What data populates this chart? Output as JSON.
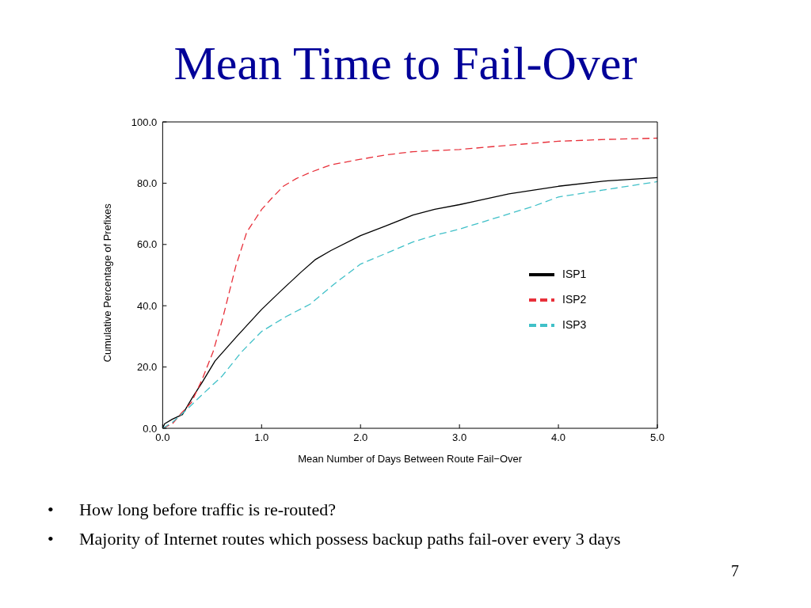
{
  "chart_data": {
    "type": "line",
    "title": "Mean Time to Fail-Over",
    "xlabel": "Mean Number of Days Between Route Fail−Over",
    "ylabel": "Cumulative Percentage of Prefixes",
    "xlim": [
      0,
      5
    ],
    "xticks": [
      {
        "value": 0,
        "label": "0.0"
      },
      {
        "value": 1,
        "label": "1.0"
      },
      {
        "value": 2,
        "label": "2.0"
      },
      {
        "value": 3,
        "label": "3.0"
      },
      {
        "value": 4,
        "label": "4.0"
      },
      {
        "value": 5,
        "label": "5.0"
      }
    ],
    "ylim": [
      0,
      100
    ],
    "yticks": [
      {
        "value": 0,
        "label": "0.0"
      },
      {
        "value": 20,
        "label": "20.0"
      },
      {
        "value": 40,
        "label": "40.0"
      },
      {
        "value": 60,
        "label": "60.0"
      },
      {
        "value": 80,
        "label": "80.0"
      },
      {
        "value": 100,
        "label": "100.0"
      }
    ],
    "legend": "right",
    "marker": "none",
    "series": [
      {
        "name": "ISP1",
        "color": "#000000",
        "line_style": "solid",
        "x": [
          0,
          0.02,
          0.1,
          0.2,
          0.3,
          0.4,
          0.53,
          0.75,
          1.0,
          1.2,
          1.4,
          1.54,
          1.7,
          2.0,
          2.25,
          2.53,
          2.75,
          3.0,
          3.5,
          4.0,
          4.5,
          5.0
        ],
        "values": [
          0,
          1.5,
          3,
          4.5,
          10,
          15,
          22,
          30,
          38.8,
          45,
          51,
          55,
          58,
          62.9,
          66,
          69.6,
          71.5,
          73,
          76.5,
          79,
          80.8,
          81.8
        ]
      },
      {
        "name": "ISP2",
        "color": "#e8303a",
        "line_style": "dashed",
        "x": [
          0,
          0.1,
          0.19,
          0.29,
          0.4,
          0.51,
          0.6,
          0.74,
          0.85,
          1.0,
          1.1,
          1.22,
          1.35,
          1.49,
          1.7,
          2.0,
          2.25,
          2.53,
          3.0,
          3.5,
          4.0,
          4.5,
          5.0
        ],
        "values": [
          0,
          1.5,
          5,
          8.4,
          16,
          25,
          35,
          53,
          64,
          71.4,
          75,
          79,
          81.5,
          83.5,
          86,
          87.8,
          89.2,
          90.3,
          91,
          92.4,
          93.7,
          94.3,
          94.7
        ]
      },
      {
        "name": "ISP3",
        "color": "#40c0c8",
        "line_style": "dashed",
        "x": [
          0,
          0.1,
          0.24,
          0.4,
          0.6,
          0.8,
          1.0,
          1.25,
          1.49,
          1.75,
          2.0,
          2.25,
          2.53,
          2.75,
          3.0,
          3.25,
          3.5,
          3.75,
          4.0,
          4.5,
          5.0
        ],
        "values": [
          0,
          2,
          6,
          11,
          17,
          25,
          31.6,
          36.5,
          40.5,
          47.5,
          53.6,
          57,
          60.8,
          63,
          65,
          67.5,
          70,
          72.5,
          75.5,
          78,
          80.5
        ]
      }
    ],
    "annotations": [
      "•",
      "How long before traffic is re-routed?",
      "•",
      "Majority of Internet routes which possess backup paths fail-over every 3 days",
      "7"
    ]
  }
}
